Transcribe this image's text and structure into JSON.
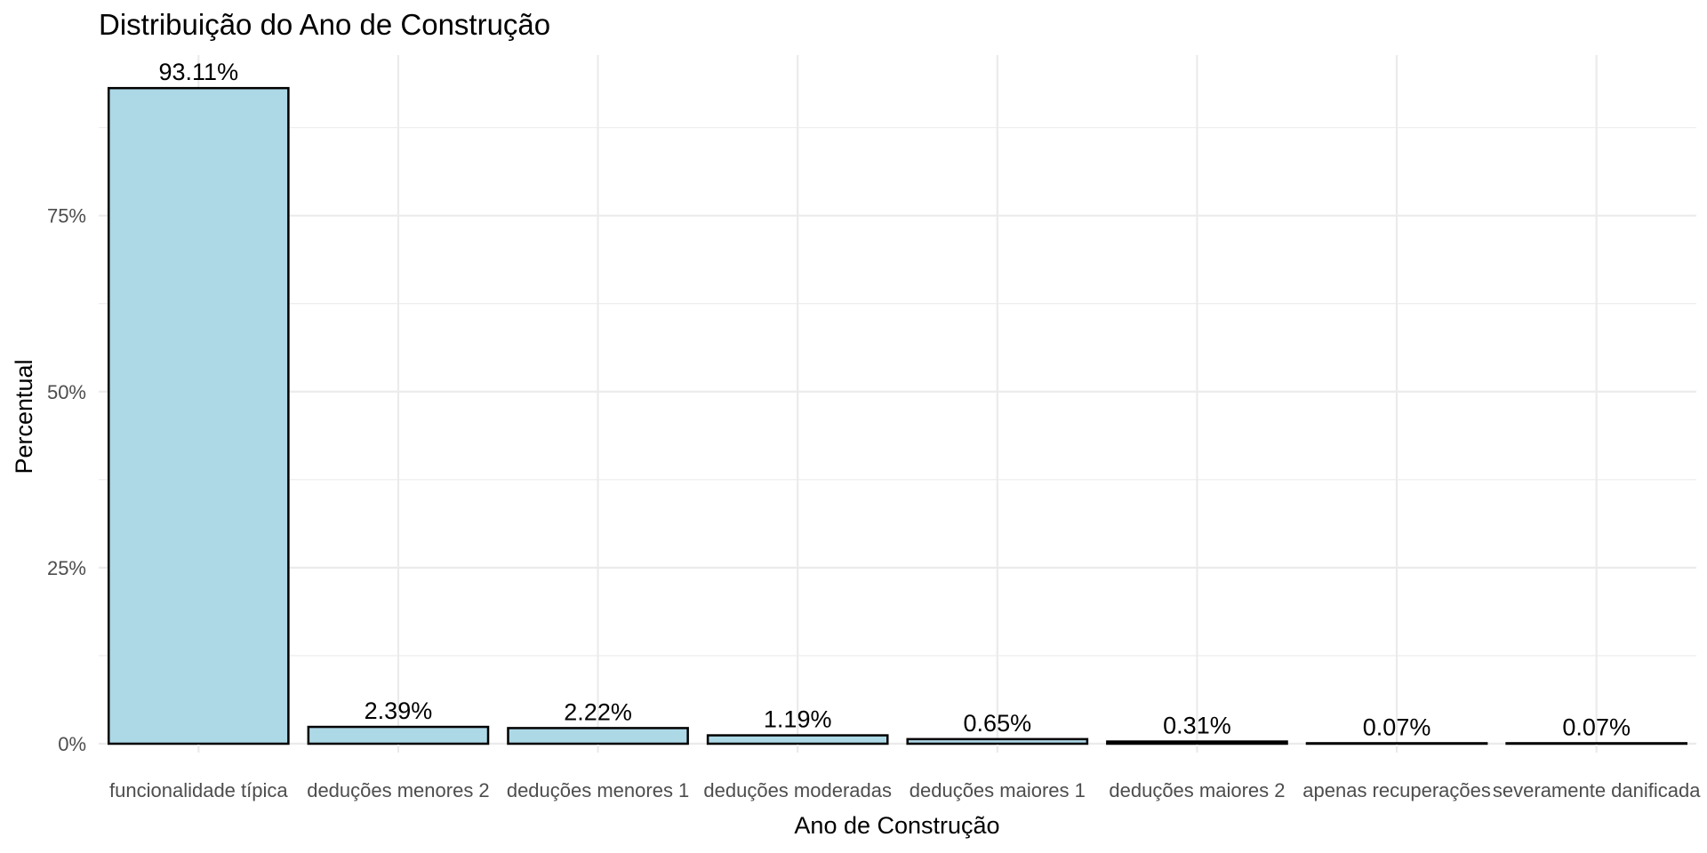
{
  "chart_data": {
    "type": "bar",
    "title": "Distribuição do Ano de Construção",
    "xlabel": "Ano de Construção",
    "ylabel": "Percentual",
    "categories": [
      "funcionalidade típica",
      "deduções menores 2",
      "deduções menores 1",
      "deduções moderadas",
      "deduções maiores 1",
      "deduções maiores 2",
      "apenas recuperações",
      "severamente danificada"
    ],
    "values": [
      93.11,
      2.39,
      2.22,
      1.19,
      0.65,
      0.31,
      0.07,
      0.07
    ],
    "data_labels": [
      "93.11%",
      "2.39%",
      "2.22%",
      "1.19%",
      "0.65%",
      "0.31%",
      "0.07%",
      "0.07%"
    ],
    "y_ticks": [
      0,
      25,
      50,
      75
    ],
    "y_tick_labels": [
      "0%",
      "25%",
      "50%",
      "75%"
    ],
    "ylim": [
      0,
      97.8
    ],
    "grid": true,
    "legend": "none",
    "colors": {
      "bar_fill": "#add8e6",
      "bar_outline": "#000000",
      "grid": "#ebebeb"
    }
  }
}
